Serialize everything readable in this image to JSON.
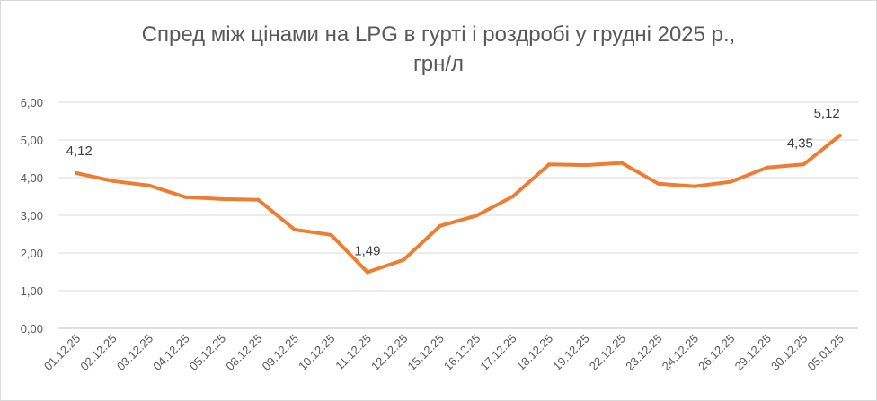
{
  "chart_data": {
    "type": "line",
    "title_line1": "Спред між цінами на LPG в гурті і роздробі у грудні 2025 р.,",
    "title_line2": "грн/л",
    "xlabel": "",
    "ylabel": "",
    "ylim": [
      0,
      6
    ],
    "y_ticks": [
      "0,00",
      "1,00",
      "2,00",
      "3,00",
      "4,00",
      "5,00",
      "6,00"
    ],
    "y_tick_values": [
      0,
      1,
      2,
      3,
      4,
      5,
      6
    ],
    "grid": true,
    "legend": "none",
    "line_color": "#ed7d31",
    "categories": [
      "01.12.25",
      "02.12.25",
      "03.12.25",
      "04.12.25",
      "05.12.25",
      "08.12.25",
      "09.12.25",
      "10.12.25",
      "11.12.25",
      "12.12.25",
      "15.12.25",
      "16.12.25",
      "17.12.25",
      "18.12.25",
      "19.12.25",
      "22.12.25",
      "23.12.25",
      "24.12.25",
      "26.12.25",
      "29.12.25",
      "30.12.25",
      "05.01.25"
    ],
    "series": [
      {
        "values": [
          4.12,
          3.91,
          3.79,
          3.48,
          3.43,
          3.41,
          2.62,
          2.48,
          1.49,
          1.82,
          2.72,
          2.99,
          3.5,
          4.35,
          4.33,
          4.39,
          3.84,
          3.77,
          3.89,
          4.27,
          4.35,
          5.12
        ]
      }
    ],
    "data_labels": [
      {
        "index": 0,
        "text": "4,12"
      },
      {
        "index": 8,
        "text": "1,49"
      },
      {
        "index": 20,
        "text": "4,35"
      },
      {
        "index": 21,
        "text": "5,12"
      }
    ]
  }
}
